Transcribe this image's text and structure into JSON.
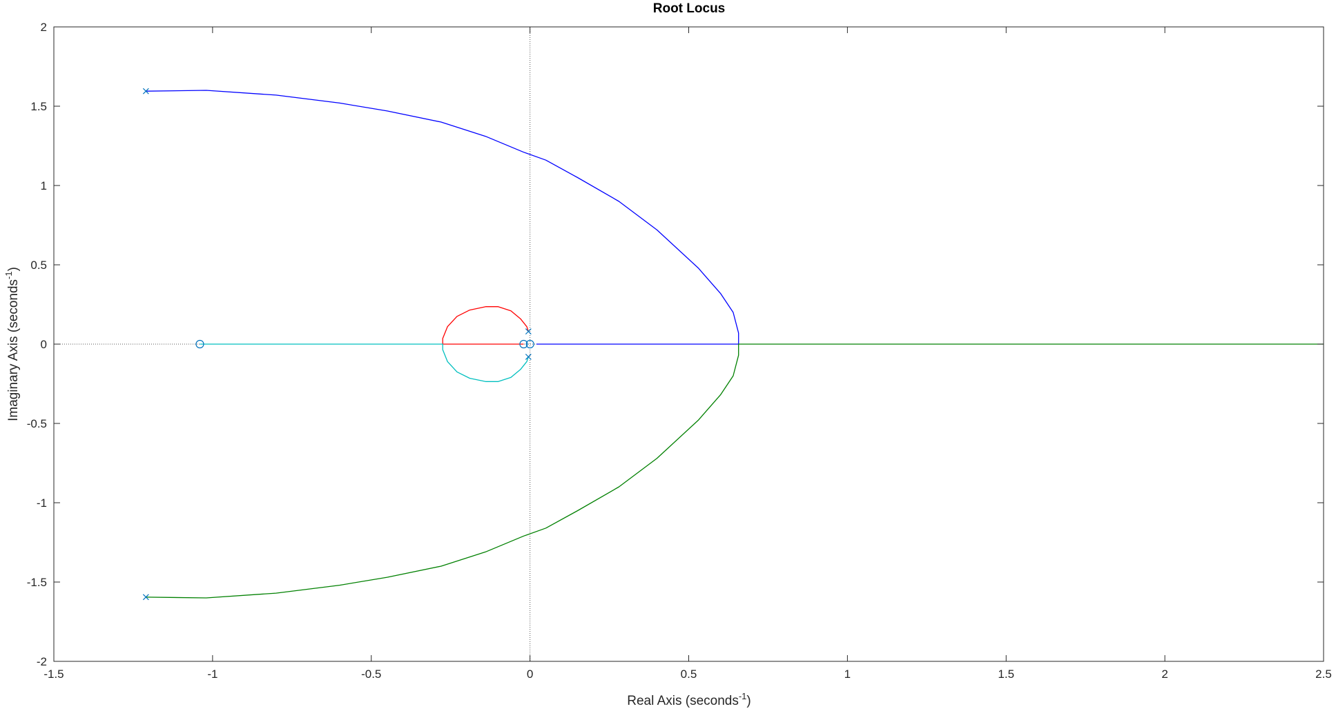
{
  "chart_data": {
    "type": "line",
    "title": "Root Locus",
    "xlabel": {
      "main": "Real Axis (seconds",
      "superscript": "-1",
      "suffix": ")"
    },
    "ylabel": {
      "main": "Imaginary Axis (seconds",
      "superscript": "-1",
      "suffix": ")"
    },
    "xlim": [
      -1.5,
      2.5
    ],
    "ylim": [
      -2,
      2
    ],
    "x_ticks": [
      -1.5,
      -1,
      -0.5,
      0,
      0.5,
      1,
      1.5,
      2,
      2.5
    ],
    "x_tick_labels": [
      "-1.5",
      "-1",
      "-0.5",
      "0",
      "0.5",
      "1",
      "1.5",
      "2",
      "2.5"
    ],
    "y_ticks": [
      2,
      1.5,
      1,
      0.5,
      0,
      -0.5,
      -1,
      -1.5,
      -2
    ],
    "y_tick_labels": [
      "2",
      "1.5",
      "1",
      "0.5",
      "0",
      "-0.5",
      "-1",
      "-1.5",
      "-2"
    ],
    "grid": false,
    "reference_lines": [
      {
        "orientation": "vertical",
        "value": 0,
        "style": "dotted"
      },
      {
        "orientation": "horizontal",
        "value": 0,
        "style": "dotted"
      }
    ],
    "colors": {
      "blue": "#0000ff",
      "green": "#008000",
      "red": "#ff0000",
      "cyan": "#00bfbf",
      "marker": "#0072bd",
      "axis": "#262626"
    },
    "poles": [
      [
        -1.21,
        1.595
      ],
      [
        -1.21,
        -1.595
      ],
      [
        -0.005,
        0.08
      ],
      [
        -0.005,
        -0.08
      ]
    ],
    "zeros": [
      [
        -1.04,
        0
      ],
      [
        -0.02,
        0
      ],
      [
        0,
        0
      ]
    ],
    "series": [
      {
        "color": "blue",
        "x": [
          -1.21,
          -1.02,
          -0.8,
          -0.6,
          -0.45,
          -0.28,
          -0.14,
          -0.02,
          0.05,
          0.15,
          0.28,
          0.4,
          0.53,
          0.6,
          0.64,
          0.657,
          0.657,
          0.4,
          0.2,
          0.02
        ],
        "y": [
          1.595,
          1.6,
          1.57,
          1.52,
          1.47,
          1.4,
          1.31,
          1.21,
          1.16,
          1.05,
          0.9,
          0.72,
          0.48,
          0.32,
          0.2,
          0.07,
          0,
          0,
          0,
          0
        ]
      },
      {
        "color": "green",
        "x": [
          -1.21,
          -1.02,
          -0.8,
          -0.6,
          -0.45,
          -0.28,
          -0.14,
          -0.02,
          0.05,
          0.15,
          0.28,
          0.4,
          0.53,
          0.6,
          0.64,
          0.657,
          0.657,
          1.0,
          1.5,
          2.0,
          2.5
        ],
        "y": [
          -1.595,
          -1.6,
          -1.57,
          -1.52,
          -1.47,
          -1.4,
          -1.31,
          -1.21,
          -1.16,
          -1.05,
          -0.9,
          -0.72,
          -0.48,
          -0.32,
          -0.2,
          -0.07,
          0,
          0,
          0,
          0,
          0
        ]
      },
      {
        "color": "red",
        "x": [
          -0.005,
          -0.01,
          -0.03,
          -0.06,
          -0.1,
          -0.14,
          -0.19,
          -0.23,
          -0.26,
          -0.275,
          -0.275,
          -0.2,
          -0.1,
          -0.02
        ],
        "y": [
          0.08,
          0.11,
          0.16,
          0.21,
          0.236,
          0.236,
          0.215,
          0.175,
          0.11,
          0.035,
          0,
          0,
          0,
          0
        ]
      },
      {
        "color": "cyan",
        "x": [
          -0.005,
          -0.01,
          -0.03,
          -0.06,
          -0.1,
          -0.14,
          -0.19,
          -0.23,
          -0.26,
          -0.275,
          -0.275,
          -0.5,
          -0.8,
          -1.04
        ],
        "y": [
          -0.08,
          -0.11,
          -0.16,
          -0.21,
          -0.236,
          -0.236,
          -0.215,
          -0.175,
          -0.11,
          -0.035,
          0,
          0,
          0,
          0
        ]
      }
    ]
  }
}
